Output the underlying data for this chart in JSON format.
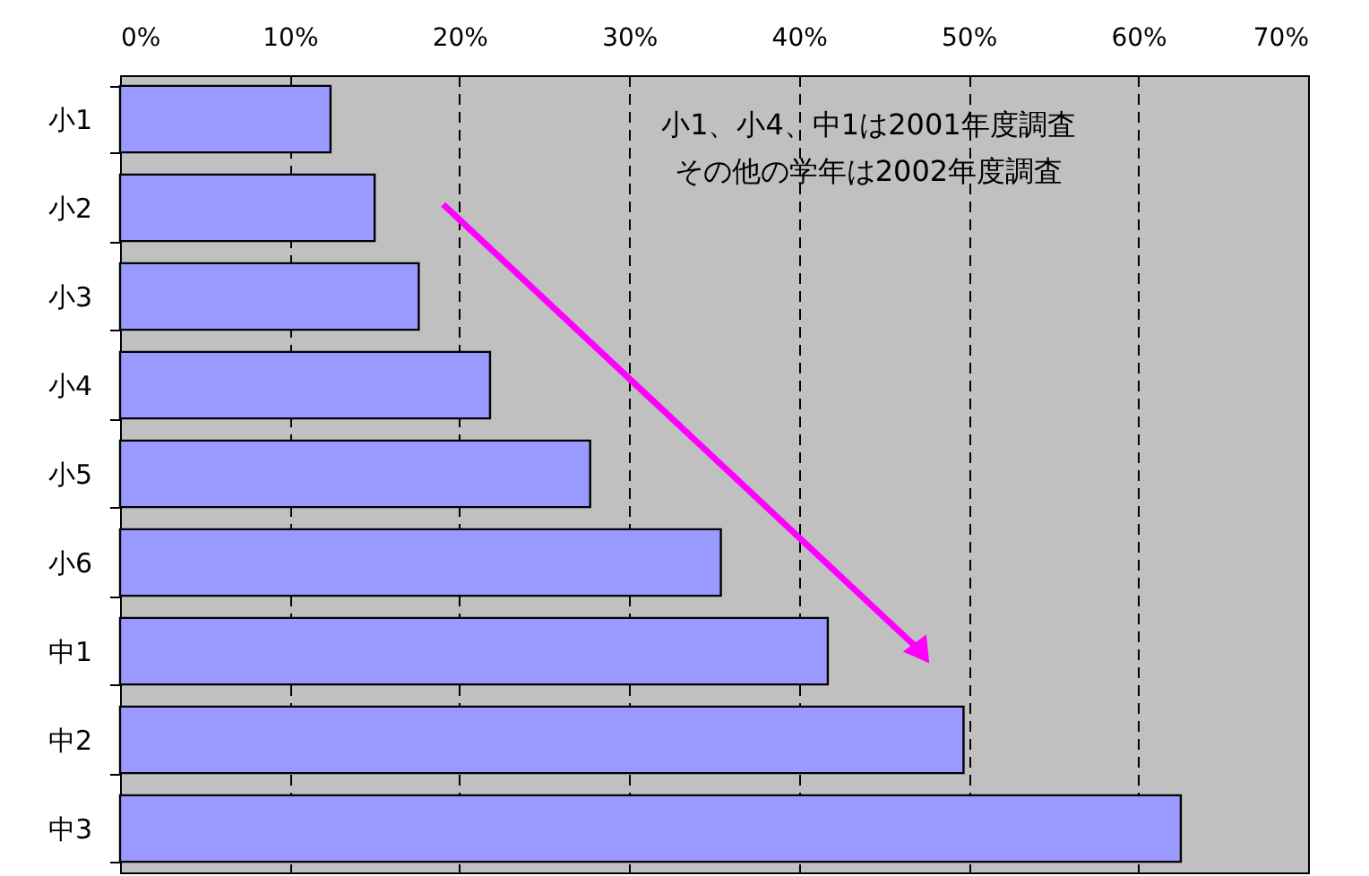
{
  "chart_data": {
    "type": "bar",
    "orientation": "horizontal",
    "categories": [
      "小1",
      "小2",
      "小3",
      "小4",
      "小5",
      "小6",
      "中1",
      "中2",
      "中3"
    ],
    "values": [
      12.4,
      15.0,
      17.6,
      21.8,
      27.7,
      35.4,
      41.7,
      49.7,
      62.5
    ],
    "color": "#9999ff",
    "xlim": [
      0,
      70
    ],
    "xticks": [
      {
        "value": 0,
        "label": "0%"
      },
      {
        "value": 10,
        "label": "10%"
      },
      {
        "value": 20,
        "label": "20%"
      },
      {
        "value": 30,
        "label": "30%"
      },
      {
        "value": 40,
        "label": "40%"
      },
      {
        "value": 50,
        "label": "50%"
      },
      {
        "value": 60,
        "label": "60%"
      },
      {
        "value": 70,
        "label": "70%"
      }
    ],
    "grid": "x",
    "annotations": [
      "小1、小4、中1は2001年度調査",
      "その他の学年は2002年度調査"
    ]
  }
}
